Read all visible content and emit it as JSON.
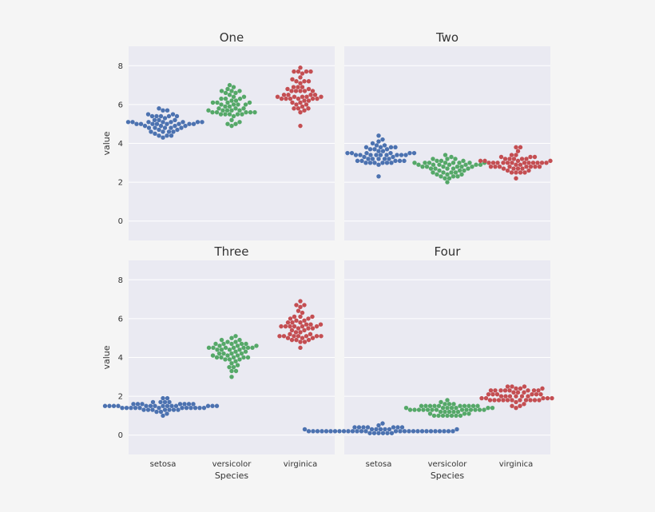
{
  "colors": {
    "background": "#f5f5f5",
    "panel": "#eaeaf2",
    "grid": "#ffffff",
    "setosa": "#4c72b0",
    "versicolor": "#55a868",
    "virginica": "#c44e52"
  },
  "chart_data": [
    {
      "type": "scatter",
      "style": "swarm",
      "title": "One",
      "xlabel": "",
      "ylabel": "value",
      "categories": [
        "setosa",
        "versicolor",
        "virginica"
      ],
      "ylim": [
        -1,
        9
      ],
      "yticks": [
        "0",
        "2",
        "4",
        "6",
        "8"
      ],
      "grid": true,
      "series": [
        {
          "values": [
            5.1,
            4.9,
            4.7,
            4.6,
            5.0,
            5.4,
            4.6,
            5.0,
            4.4,
            4.9,
            5.4,
            4.8,
            4.8,
            4.3,
            5.8,
            5.7,
            5.4,
            5.1,
            5.7,
            5.1,
            5.4,
            5.1,
            4.6,
            5.1,
            4.8,
            5.0,
            5.0,
            5.2,
            5.2,
            4.7,
            4.8,
            5.4,
            5.2,
            5.5,
            4.9,
            5.0,
            5.5,
            4.9,
            4.4,
            5.1,
            5.0,
            4.5,
            4.4,
            5.0,
            5.1,
            4.8,
            5.1,
            4.6,
            5.3,
            5.0
          ]
        },
        {
          "values": [
            7.0,
            6.4,
            6.9,
            5.5,
            6.5,
            5.7,
            6.3,
            4.9,
            6.6,
            5.2,
            5.0,
            5.9,
            6.0,
            6.1,
            5.6,
            6.7,
            5.6,
            5.8,
            6.2,
            5.6,
            5.9,
            6.1,
            6.3,
            6.1,
            6.4,
            6.6,
            6.8,
            6.7,
            6.0,
            5.7,
            5.5,
            5.5,
            5.8,
            6.0,
            5.4,
            6.0,
            6.7,
            6.3,
            5.6,
            5.5,
            5.5,
            6.1,
            5.8,
            5.0,
            5.6,
            5.7,
            5.7,
            6.2,
            5.1,
            5.7
          ]
        },
        {
          "values": [
            6.3,
            5.8,
            7.1,
            6.3,
            6.5,
            7.6,
            4.9,
            7.3,
            6.7,
            7.2,
            6.5,
            6.4,
            6.8,
            5.7,
            5.8,
            6.4,
            6.5,
            7.7,
            7.7,
            6.0,
            6.9,
            5.6,
            7.7,
            6.3,
            6.7,
            7.2,
            6.2,
            6.1,
            6.4,
            7.2,
            7.4,
            7.9,
            6.4,
            6.3,
            6.1,
            7.7,
            6.3,
            6.4,
            6.0,
            6.9,
            6.7,
            6.9,
            5.8,
            6.8,
            6.7,
            6.7,
            6.3,
            6.5,
            6.2,
            5.9
          ]
        }
      ]
    },
    {
      "type": "scatter",
      "style": "swarm",
      "title": "Two",
      "xlabel": "",
      "ylabel": "",
      "categories": [
        "setosa",
        "versicolor",
        "virginica"
      ],
      "ylim": [
        -1,
        9
      ],
      "grid": true,
      "series": [
        {
          "values": [
            3.5,
            3.0,
            3.2,
            3.1,
            3.6,
            3.9,
            3.4,
            3.4,
            2.9,
            3.1,
            3.7,
            3.4,
            3.0,
            3.0,
            4.0,
            4.4,
            3.9,
            3.5,
            3.8,
            3.8,
            3.4,
            3.7,
            3.6,
            3.3,
            3.4,
            3.0,
            3.4,
            3.5,
            3.4,
            3.2,
            3.1,
            3.4,
            4.1,
            4.2,
            3.1,
            3.2,
            3.5,
            3.1,
            3.0,
            3.4,
            3.5,
            2.3,
            3.2,
            3.5,
            3.8,
            3.0,
            3.8,
            3.2,
            3.7,
            3.3
          ]
        },
        {
          "values": [
            3.2,
            3.2,
            3.1,
            2.3,
            2.8,
            2.8,
            3.3,
            2.4,
            2.9,
            2.7,
            2.0,
            3.0,
            2.2,
            2.9,
            2.9,
            3.1,
            3.0,
            2.7,
            2.2,
            2.5,
            3.2,
            2.8,
            2.5,
            2.8,
            2.9,
            3.0,
            2.8,
            3.0,
            2.9,
            2.6,
            2.4,
            2.4,
            2.7,
            2.7,
            3.0,
            3.4,
            3.1,
            2.3,
            3.0,
            2.5,
            2.6,
            3.0,
            2.6,
            2.3,
            2.7,
            3.0,
            2.9,
            2.9,
            2.5,
            2.8
          ]
        },
        {
          "values": [
            3.3,
            2.7,
            3.0,
            2.9,
            3.0,
            3.0,
            2.5,
            2.9,
            2.5,
            3.6,
            3.2,
            2.7,
            3.0,
            2.5,
            2.8,
            3.2,
            3.0,
            3.8,
            2.6,
            2.2,
            3.2,
            2.8,
            2.8,
            2.7,
            3.3,
            3.2,
            2.8,
            3.0,
            2.8,
            3.0,
            2.8,
            3.8,
            2.8,
            2.8,
            2.6,
            3.0,
            3.4,
            3.1,
            3.0,
            3.1,
            3.1,
            3.1,
            2.7,
            3.2,
            3.3,
            3.0,
            2.5,
            3.0,
            3.4,
            3.0
          ]
        }
      ]
    },
    {
      "type": "scatter",
      "style": "swarm",
      "title": "Three",
      "xlabel": "Species",
      "ylabel": "value",
      "categories": [
        "setosa",
        "versicolor",
        "virginica"
      ],
      "ylim": [
        -1,
        9
      ],
      "yticks": [
        "0",
        "2",
        "4",
        "6",
        "8"
      ],
      "grid": true,
      "series": [
        {
          "values": [
            1.4,
            1.4,
            1.3,
            1.5,
            1.4,
            1.7,
            1.4,
            1.5,
            1.4,
            1.5,
            1.5,
            1.6,
            1.4,
            1.1,
            1.2,
            1.5,
            1.3,
            1.4,
            1.7,
            1.5,
            1.7,
            1.5,
            1.0,
            1.7,
            1.9,
            1.6,
            1.6,
            1.5,
            1.4,
            1.6,
            1.6,
            1.5,
            1.5,
            1.4,
            1.5,
            1.2,
            1.3,
            1.5,
            1.3,
            1.5,
            1.3,
            1.3,
            1.3,
            1.6,
            1.9,
            1.4,
            1.6,
            1.4,
            1.5,
            1.4
          ]
        },
        {
          "values": [
            4.7,
            4.5,
            4.9,
            4.0,
            4.6,
            4.5,
            4.7,
            3.3,
            4.6,
            3.9,
            3.5,
            4.2,
            4.0,
            4.7,
            3.6,
            4.4,
            4.5,
            4.1,
            4.5,
            3.9,
            4.8,
            4.0,
            4.9,
            4.7,
            4.3,
            4.4,
            4.8,
            5.0,
            4.5,
            3.5,
            3.8,
            3.7,
            3.9,
            5.1,
            4.5,
            4.5,
            4.7,
            4.4,
            4.1,
            4.0,
            4.4,
            4.6,
            4.0,
            3.3,
            4.2,
            4.2,
            4.2,
            4.3,
            3.0,
            4.1
          ]
        },
        {
          "values": [
            6.0,
            5.1,
            5.9,
            5.6,
            5.8,
            6.6,
            4.5,
            6.3,
            5.8,
            6.1,
            5.1,
            5.3,
            5.5,
            5.0,
            5.1,
            5.3,
            5.5,
            6.7,
            6.9,
            5.0,
            5.7,
            4.9,
            6.7,
            4.9,
            5.7,
            6.0,
            4.8,
            4.9,
            5.6,
            5.8,
            6.1,
            6.4,
            5.6,
            5.1,
            5.6,
            6.1,
            5.6,
            5.5,
            4.8,
            5.4,
            5.6,
            5.1,
            5.1,
            5.9,
            5.7,
            5.2,
            5.0,
            5.2,
            5.4,
            5.1
          ]
        }
      ]
    },
    {
      "type": "scatter",
      "style": "swarm",
      "title": "Four",
      "xlabel": "Species",
      "ylabel": "",
      "categories": [
        "setosa",
        "versicolor",
        "virginica"
      ],
      "ylim": [
        -1,
        9
      ],
      "grid": true,
      "series": [
        {
          "values": [
            0.2,
            0.2,
            0.2,
            0.2,
            0.2,
            0.4,
            0.3,
            0.2,
            0.2,
            0.1,
            0.2,
            0.2,
            0.1,
            0.1,
            0.2,
            0.4,
            0.4,
            0.3,
            0.3,
            0.3,
            0.2,
            0.4,
            0.2,
            0.5,
            0.2,
            0.2,
            0.4,
            0.2,
            0.2,
            0.2,
            0.2,
            0.4,
            0.1,
            0.2,
            0.1,
            0.2,
            0.2,
            0.1,
            0.2,
            0.2,
            0.3,
            0.3,
            0.2,
            0.6,
            0.4,
            0.3,
            0.2,
            0.2,
            0.2,
            0.2
          ]
        },
        {
          "values": [
            1.4,
            1.5,
            1.5,
            1.3,
            1.5,
            1.3,
            1.6,
            1.0,
            1.3,
            1.4,
            1.0,
            1.5,
            1.0,
            1.4,
            1.3,
            1.4,
            1.5,
            1.0,
            1.5,
            1.1,
            1.8,
            1.3,
            1.5,
            1.2,
            1.3,
            1.4,
            1.4,
            1.7,
            1.5,
            1.0,
            1.1,
            1.0,
            1.2,
            1.6,
            1.5,
            1.6,
            1.5,
            1.3,
            1.3,
            1.3,
            1.2,
            1.4,
            1.2,
            1.0,
            1.3,
            1.2,
            1.3,
            1.3,
            1.1,
            1.3
          ]
        },
        {
          "values": [
            2.5,
            1.9,
            2.1,
            1.8,
            2.2,
            2.1,
            1.7,
            1.8,
            1.8,
            2.5,
            2.0,
            1.9,
            2.1,
            2.0,
            2.4,
            2.3,
            1.8,
            2.2,
            2.3,
            1.5,
            2.3,
            2.0,
            2.0,
            1.8,
            2.1,
            1.8,
            1.8,
            1.8,
            2.1,
            1.6,
            1.9,
            2.0,
            2.2,
            1.5,
            1.4,
            2.3,
            2.4,
            1.8,
            1.8,
            2.1,
            2.4,
            2.3,
            1.9,
            2.3,
            2.5,
            2.3,
            1.9,
            2.0,
            2.3,
            1.8
          ]
        }
      ]
    }
  ]
}
